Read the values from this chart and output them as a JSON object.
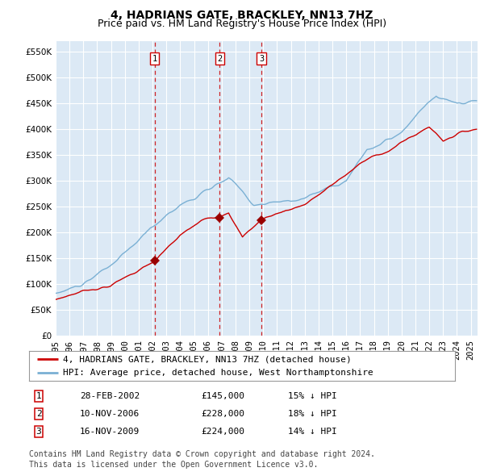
{
  "title": "4, HADRIANS GATE, BRACKLEY, NN13 7HZ",
  "subtitle": "Price paid vs. HM Land Registry's House Price Index (HPI)",
  "ytick_values": [
    0,
    50000,
    100000,
    150000,
    200000,
    250000,
    300000,
    350000,
    400000,
    450000,
    500000,
    550000
  ],
  "ylim": [
    0,
    570000
  ],
  "xlim_start": 1995.0,
  "xlim_end": 2025.5,
  "plot_bg_color": "#dce9f5",
  "grid_color": "#ffffff",
  "red_line_color": "#cc0000",
  "blue_line_color": "#7ab0d4",
  "dashed_line_color": "#cc0000",
  "marker_color": "#990000",
  "transaction_lines": [
    2002.154,
    2006.861,
    2009.878
  ],
  "transaction_labels": [
    "1",
    "2",
    "3"
  ],
  "transaction_prices": [
    145000,
    228000,
    224000
  ],
  "transaction_dates": [
    "28-FEB-2002",
    "10-NOV-2006",
    "16-NOV-2009"
  ],
  "transaction_hpi_pct": [
    "15% ↓ HPI",
    "18% ↓ HPI",
    "14% ↓ HPI"
  ],
  "legend_line1": "4, HADRIANS GATE, BRACKLEY, NN13 7HZ (detached house)",
  "legend_line2": "HPI: Average price, detached house, West Northamptonshire",
  "footer_line1": "Contains HM Land Registry data © Crown copyright and database right 2024.",
  "footer_line2": "This data is licensed under the Open Government Licence v3.0.",
  "title_fontsize": 10,
  "subtitle_fontsize": 9,
  "tick_fontsize": 7.5,
  "legend_fontsize": 8,
  "table_fontsize": 8,
  "footer_fontsize": 7
}
